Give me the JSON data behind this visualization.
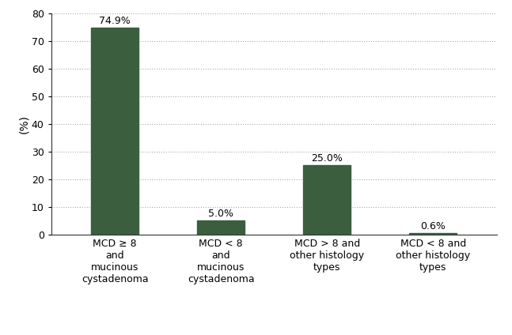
{
  "categories": [
    "MCD ≥ 8\nand\nmucinous\ncystadenoma",
    "MCD < 8\nand\nmucinous\ncystadenoma",
    "MCD > 8 and\nother histology\ntypes",
    "MCD < 8 and\nother histology\ntypes"
  ],
  "values": [
    74.9,
    5.0,
    25.0,
    0.6
  ],
  "labels": [
    "74.9%",
    "5.0%",
    "25.0%",
    "0.6%"
  ],
  "bar_color": "#3b5e3f",
  "ylabel": "(%)",
  "ylim": [
    0,
    80
  ],
  "yticks": [
    0,
    10,
    20,
    30,
    40,
    50,
    60,
    70,
    80
  ],
  "background_color": "#ffffff",
  "grid_color": "#aaaaaa",
  "label_fontsize": 9,
  "tick_fontsize": 9,
  "ylabel_fontsize": 10,
  "bar_width": 0.45
}
